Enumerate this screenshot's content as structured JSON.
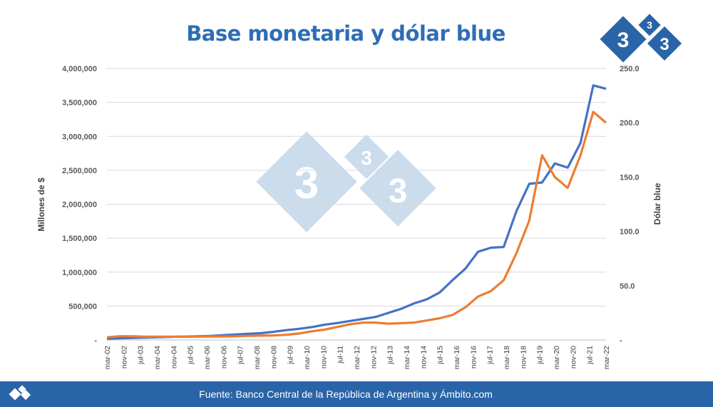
{
  "title": "Base monetaria y dólar blue",
  "logo_text": "3",
  "footer": {
    "source": "Fuente: Banco Central de la República de Argentina y Ámbito.com"
  },
  "colors": {
    "accent": "#2f6db5",
    "base": "#4472c4",
    "dolar": "#ed7d31",
    "footer": "#2a64a8",
    "watermark": "#c6d9ea"
  },
  "chart_data": {
    "type": "line",
    "title": "Base monetaria y dólar blue",
    "ylabel": "Millones de $",
    "y2label": "Dólar blue",
    "ylim": [
      0,
      4000000
    ],
    "y2lim": [
      0,
      250
    ],
    "yticks": [
      "-",
      "500,000",
      "1,000,000",
      "1,500,000",
      "2,000,000",
      "2,500,000",
      "3,000,000",
      "3,500,000",
      "4,000,000"
    ],
    "y2ticks": [
      "-",
      "50.0",
      "100.0",
      "150.0",
      "200.0",
      "250.0"
    ],
    "xticks": [
      "mar-02",
      "nov-02",
      "jul-03",
      "mar-04",
      "nov-04",
      "jul-05",
      "mar-06",
      "nov-06",
      "jul-07",
      "mar-08",
      "nov-08",
      "jul-09",
      "mar-10",
      "nov-10",
      "jul-11",
      "mar-12",
      "nov-12",
      "jul-13",
      "mar-14",
      "nov-14",
      "jul-15",
      "mar-16",
      "nov-16",
      "jul-17",
      "mar-18",
      "nov-18",
      "jul-19",
      "mar-20",
      "nov-20",
      "jul-21",
      "mar-22"
    ],
    "grid": true,
    "legend": "none",
    "series": [
      {
        "axis": "left",
        "values": [
          20000,
          25000,
          30000,
          35000,
          40000,
          45000,
          50000,
          55000,
          60000,
          70000,
          80000,
          90000,
          100000,
          120000,
          145000,
          165000,
          190000,
          225000,
          250000,
          280000,
          310000,
          340000,
          400000,
          460000,
          540000,
          600000,
          700000,
          880000,
          1050000,
          1300000,
          1360000,
          1370000,
          1900000,
          2300000,
          2320000,
          2600000,
          2540000,
          2900000,
          3750000,
          3700000
        ]
      },
      {
        "axis": "right",
        "values": [
          2.5,
          3.5,
          3.5,
          3.0,
          3.0,
          3.0,
          3.0,
          3.1,
          3.2,
          3.2,
          3.4,
          3.8,
          4.0,
          4.2,
          4.8,
          6.0,
          8.0,
          9.5,
          12.0,
          14.5,
          16.0,
          16.0,
          15.0,
          15.5,
          16.0,
          18.0,
          20.0,
          23.0,
          30.0,
          40.0,
          45.0,
          55.0,
          80.0,
          110.0,
          170.0,
          150.0,
          140.0,
          170.0,
          210.0,
          200.0
        ]
      }
    ]
  }
}
